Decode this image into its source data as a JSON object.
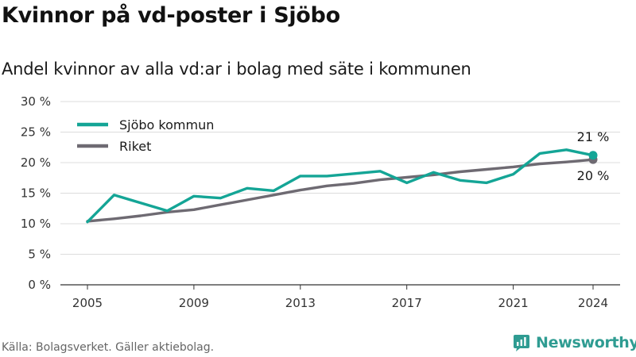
{
  "title": "Kvinnor på vd-poster i Sjöbo",
  "subtitle": "Andel kvinnor av alla vd:ar i bolag med säte i kommunen",
  "source": "Källa: Bolagsverket. Gäller aktiebolag.",
  "brand": "Newsworthy",
  "colors": {
    "accent": "#14a596",
    "national": "#6e6a72",
    "brand": "#2f9c92"
  },
  "chart_data": {
    "type": "line",
    "x": [
      2005,
      2006,
      2007,
      2008,
      2009,
      2010,
      2011,
      2012,
      2013,
      2014,
      2015,
      2016,
      2017,
      2018,
      2019,
      2020,
      2021,
      2022,
      2023,
      2024
    ],
    "series": [
      {
        "name": "Sjöbo kommun",
        "color": "#14a596",
        "values": [
          10.3,
          14.7,
          13.4,
          12.1,
          14.5,
          14.2,
          15.8,
          15.4,
          17.8,
          17.8,
          18.2,
          18.6,
          16.7,
          18.4,
          17.1,
          16.7,
          18.1,
          21.5,
          22.1,
          21.2
        ]
      },
      {
        "name": "Riket",
        "color": "#6e6a72",
        "values": [
          10.4,
          10.8,
          11.3,
          11.9,
          12.3,
          13.1,
          13.9,
          14.7,
          15.5,
          16.2,
          16.6,
          17.2,
          17.6,
          18.0,
          18.5,
          18.9,
          19.3,
          19.8,
          20.1,
          20.5
        ]
      }
    ],
    "end_labels": [
      "21 %",
      "20 %"
    ],
    "xticks": [
      2005,
      2009,
      2013,
      2017,
      2021,
      2024
    ],
    "yticks": [
      0,
      5,
      10,
      15,
      20,
      25,
      30
    ],
    "ytick_labels": [
      "0 %",
      "5 %",
      "10 %",
      "15 %",
      "20 %",
      "25 %",
      "30 %"
    ],
    "ylim": [
      0,
      30
    ],
    "xlim": [
      2005,
      2024
    ],
    "grid": true,
    "legend": "top-left"
  }
}
